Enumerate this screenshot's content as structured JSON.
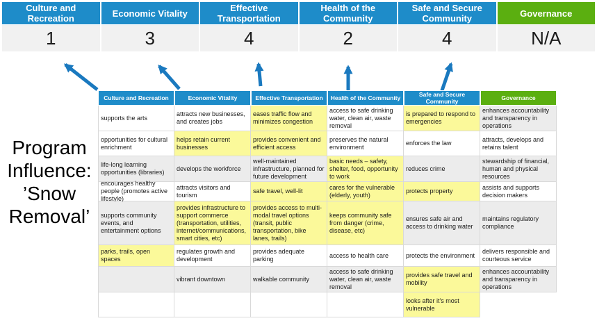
{
  "colors": {
    "header_blue": "#1E8CC9",
    "header_green": "#5BAF10",
    "highlight_yellow": "#FBF99A",
    "row_gray": "#ECECEC",
    "score_bg": "#F1F1F1",
    "arrow_blue": "#1A79BF",
    "cell_border": "#D9D9D9"
  },
  "program_label": "Program Influence: ’Snow Removal’",
  "priorities": [
    {
      "name": "Culture and Recreation",
      "score": "1",
      "header": "blue"
    },
    {
      "name": "Economic Vitality",
      "score": "3",
      "header": "blue"
    },
    {
      "name": "Effective Transportation",
      "score": "4",
      "header": "blue"
    },
    {
      "name": "Health of the Community",
      "score": "2",
      "header": "blue"
    },
    {
      "name": "Safe and Secure Community",
      "score": "4",
      "header": "blue"
    },
    {
      "name": "Governance",
      "score": "N/A",
      "header": "green"
    }
  ],
  "matrix": {
    "headers": [
      {
        "label": "Culture and Recreation",
        "header": "blue"
      },
      {
        "label": "Economic Vitality",
        "header": "blue"
      },
      {
        "label": "Effective Transportation",
        "header": "blue"
      },
      {
        "label": "Health of the Community",
        "header": "blue"
      },
      {
        "label": "Safe and Secure Community",
        "header": "blue"
      },
      {
        "label": "Governance",
        "header": "green"
      }
    ],
    "rows": [
      [
        {
          "text": "supports the arts",
          "bg": "white"
        },
        {
          "text": "attracts new businesses, and creates jobs",
          "bg": "white"
        },
        {
          "text": "eases traffic flow and minimizes congestion",
          "bg": "yellow"
        },
        {
          "text": "access to safe drinking water, clean air, waste removal",
          "bg": "white"
        },
        {
          "text": "is prepared to respond to emergencies",
          "bg": "yellow"
        },
        {
          "text": "enhances accountability and transparency in operations",
          "bg": "gray"
        }
      ],
      [
        {
          "text": "opportunities for cultural enrichment",
          "bg": "white"
        },
        {
          "text": "helps retain current businesses",
          "bg": "yellow"
        },
        {
          "text": "provides convenient and efficient access",
          "bg": "yellow"
        },
        {
          "text": "preserves the natural environment",
          "bg": "white"
        },
        {
          "text": "enforces the law",
          "bg": "white"
        },
        {
          "text": "attracts, develops and retains talent",
          "bg": "white"
        }
      ],
      [
        {
          "text": "life-long learning opportunities (libraries)",
          "bg": "gray"
        },
        {
          "text": "develops the workforce",
          "bg": "gray"
        },
        {
          "text": "well-maintained infrastructure, planned for future development",
          "bg": "gray"
        },
        {
          "text": "basic needs – safety, shelter, food, opportunity to work",
          "bg": "yellow"
        },
        {
          "text": "reduces crime",
          "bg": "gray"
        },
        {
          "text": "stewardship of financial, human and physical resources",
          "bg": "gray"
        }
      ],
      [
        {
          "text": "encourages healthy people (promotes active lifestyle)",
          "bg": "white"
        },
        {
          "text": "attracts visitors and tourism",
          "bg": "white"
        },
        {
          "text": "safe travel, well-lit",
          "bg": "yellow"
        },
        {
          "text": "cares for the vulnerable (elderly, youth)",
          "bg": "yellow"
        },
        {
          "text": "protects property",
          "bg": "yellow"
        },
        {
          "text": "assists and supports decision makers",
          "bg": "white"
        }
      ],
      [
        {
          "text": "supports community events, and entertainment options",
          "bg": "gray"
        },
        {
          "text": "provides infrastructure to support commerce (transportation, utilities, internet/communications, smart cities, etc)",
          "bg": "yellow"
        },
        {
          "text": "provides access to multi-modal travel options (transit, public transportation, bike lanes, trails)",
          "bg": "yellow"
        },
        {
          "text": "keeps community safe from danger (crime, disease, etc)",
          "bg": "yellow"
        },
        {
          "text": "ensures safe air and access to drinking water",
          "bg": "gray"
        },
        {
          "text": "maintains regulatory compliance",
          "bg": "gray"
        }
      ],
      [
        {
          "text": "parks, trails, open spaces",
          "bg": "yellow"
        },
        {
          "text": "regulates growth and development",
          "bg": "white"
        },
        {
          "text": "provides adequate parking",
          "bg": "white"
        },
        {
          "text": "access to health care",
          "bg": "white"
        },
        {
          "text": "protects the environment",
          "bg": "white"
        },
        {
          "text": "delivers responsible and courteous service",
          "bg": "white"
        }
      ],
      [
        {
          "text": "",
          "bg": "gray"
        },
        {
          "text": "vibrant downtown",
          "bg": "gray"
        },
        {
          "text": "walkable community",
          "bg": "gray"
        },
        {
          "text": "access to safe drinking water, clean air, waste removal",
          "bg": "gray"
        },
        {
          "text": "provides safe travel and mobility",
          "bg": "yellow"
        },
        {
          "text": "enhances accountability and transparency in operations",
          "bg": "gray"
        }
      ],
      [
        {
          "text": "",
          "bg": "white"
        },
        {
          "text": "",
          "bg": "white"
        },
        {
          "text": "",
          "bg": "white"
        },
        {
          "text": "",
          "bg": "white"
        },
        {
          "text": "looks after it's most vulnerable",
          "bg": "yellow"
        },
        {
          "text": "",
          "bg": "none"
        }
      ]
    ]
  }
}
